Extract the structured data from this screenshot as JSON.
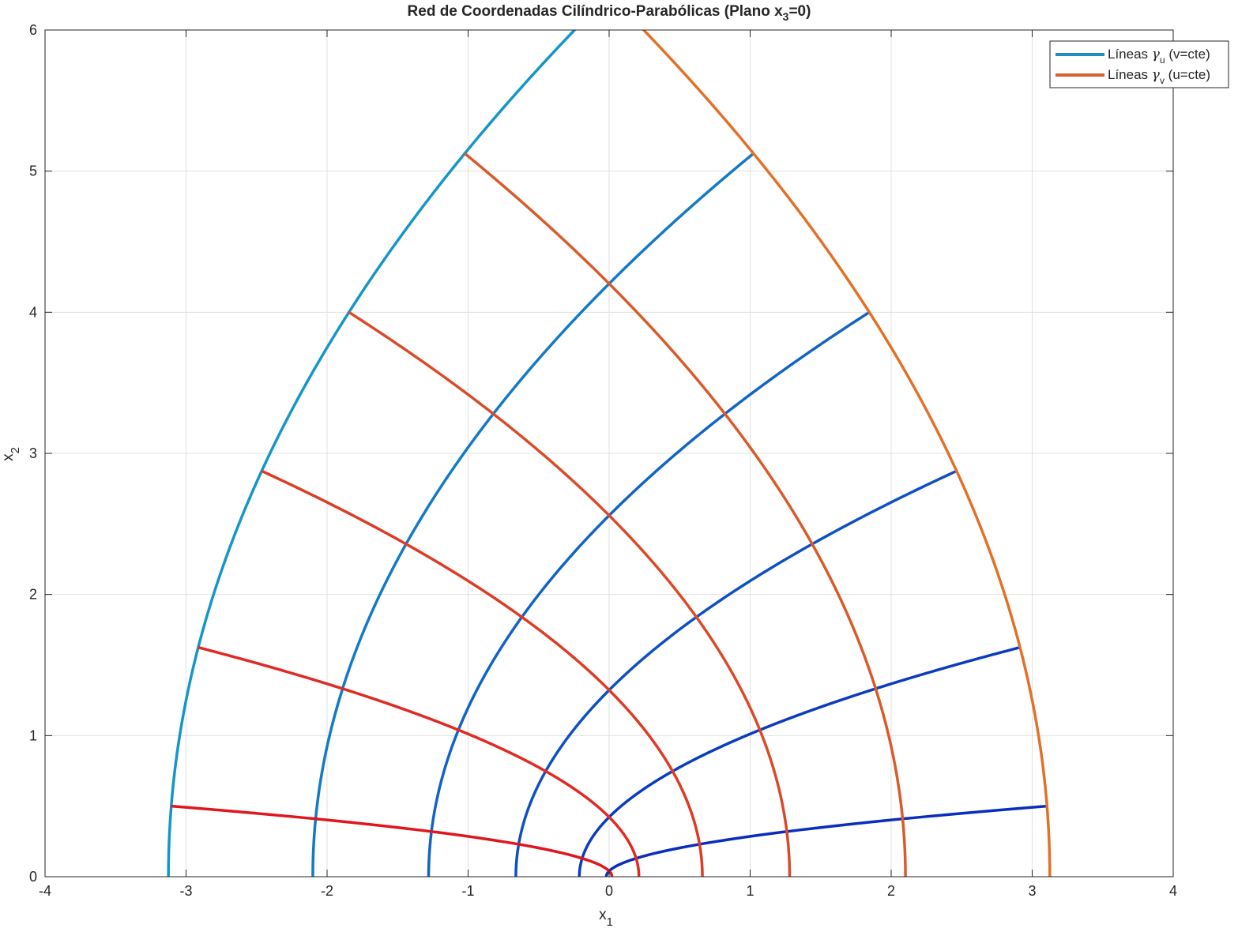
{
  "chart_data": {
    "type": "line",
    "title": {
      "main": "Red de Coordenadas Cilíndrico-Parabólicas (Plano x",
      "sub": "3",
      "end": "=0)"
    },
    "xlabel": {
      "main": "x",
      "sub": "1"
    },
    "ylabel": {
      "main": "x",
      "sub": "2"
    },
    "xlim": [
      -4,
      4
    ],
    "ylim": [
      0,
      6
    ],
    "xticks": [
      -4,
      -3,
      -2,
      -1,
      0,
      1,
      2,
      3,
      4
    ],
    "yticks": [
      0,
      1,
      2,
      3,
      4,
      5,
      6
    ],
    "xtick_labels": [
      "-4",
      "-3",
      "-2",
      "-1",
      "0",
      "1",
      "2",
      "3",
      "4"
    ],
    "ytick_labels": [
      "0",
      "1",
      "2",
      "3",
      "4",
      "5",
      "6"
    ],
    "grid": true,
    "legend_position": "top-right",
    "legend": [
      {
        "prefix": "Líneas ",
        "greek": "γ",
        "sub": "u",
        "suffix": " (v=cte)",
        "color": "#1f8fc0"
      },
      {
        "prefix": "Líneas ",
        "greek": "γ",
        "sub": "v",
        "suffix": " (u=cte)",
        "color": "#d9622b"
      }
    ],
    "relation": {
      "x1": "(u^2 - v^2)/2",
      "x2": "u*v",
      "u_range": [
        0,
        2.5
      ],
      "v_range": [
        0,
        2.5
      ]
    },
    "gamma_u_lines": {
      "parameter": "v",
      "values": [
        0.2,
        0.65,
        1.15,
        1.6,
        2.05,
        2.5
      ],
      "colors": [
        "#0a2cbf",
        "#0b3cc0",
        "#0e50c2",
        "#1164c4",
        "#127ac6",
        "#1596c8"
      ]
    },
    "gamma_v_lines": {
      "parameter": "u",
      "values": [
        0.2,
        0.65,
        1.15,
        1.6,
        2.05,
        2.5
      ],
      "colors": [
        "#e0161f",
        "#e02a23",
        "#de3b25",
        "#db4a28",
        "#d95a2a",
        "#e27127"
      ]
    }
  }
}
